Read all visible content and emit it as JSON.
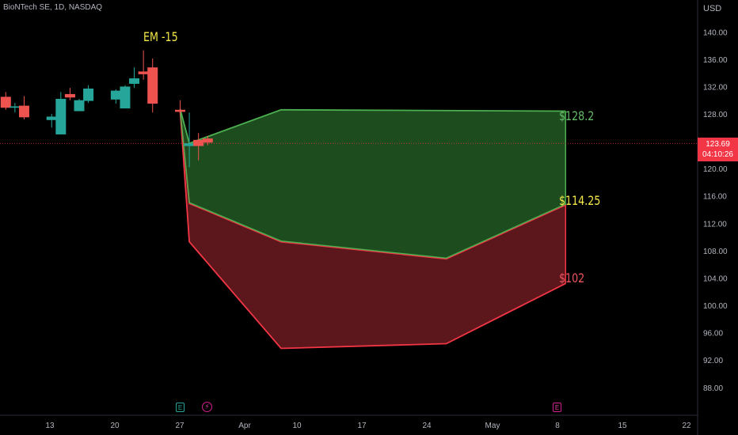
{
  "header": {
    "symbol": "BioNTech SE, 1D, NASDAQ",
    "currency": "USD"
  },
  "price_label": {
    "price": "123.69",
    "countdown": "04:10:26"
  },
  "annotations": {
    "em": "EM -15",
    "high": "$128.2",
    "mid": "$114.25",
    "low": "$102"
  },
  "events": {
    "earnings": "E",
    "dividend": "⚡"
  },
  "colors": {
    "up": "#26a69a",
    "down": "#ef5350",
    "green_fill": "#1d4d1e",
    "green_line": "#4caf50",
    "red_fill": "#5c171d",
    "red_line": "#f23645",
    "text": "#b2b5be"
  },
  "chart_data": {
    "type": "candlestick",
    "y_axis": {
      "ticks": [
        88,
        92,
        96,
        100,
        104,
        108,
        112,
        116,
        120,
        128,
        132,
        136,
        140
      ],
      "range": [
        85,
        142
      ]
    },
    "x_axis": {
      "ticks": [
        "13",
        "20",
        "27",
        "Apr",
        "10",
        "17",
        "24",
        "May",
        "8",
        "15",
        "22"
      ]
    },
    "current_price": 123.69,
    "candles": [
      {
        "date": "03-08",
        "o": 130.5,
        "h": 131.2,
        "l": 128.6,
        "c": 128.9
      },
      {
        "date": "03-09",
        "o": 128.9,
        "h": 129.6,
        "l": 128.2,
        "c": 129.1
      },
      {
        "date": "03-10",
        "o": 129.2,
        "h": 130.6,
        "l": 127.2,
        "c": 127.5
      },
      {
        "date": "03-13",
        "o": 127.1,
        "h": 128.0,
        "l": 126.0,
        "c": 127.6
      },
      {
        "date": "03-14",
        "o": 125.0,
        "h": 131.2,
        "l": 125.0,
        "c": 130.2
      },
      {
        "date": "03-15",
        "o": 130.9,
        "h": 131.8,
        "l": 130.0,
        "c": 130.4
      },
      {
        "date": "03-16",
        "o": 128.4,
        "h": 130.2,
        "l": 128.4,
        "c": 130.0
      },
      {
        "date": "03-17",
        "o": 129.9,
        "h": 132.2,
        "l": 129.6,
        "c": 131.7
      },
      {
        "date": "03-20",
        "o": 130.1,
        "h": 131.6,
        "l": 129.5,
        "c": 131.4
      },
      {
        "date": "03-21",
        "o": 128.8,
        "h": 132.2,
        "l": 128.8,
        "c": 132.0
      },
      {
        "date": "03-22",
        "o": 132.4,
        "h": 134.8,
        "l": 131.8,
        "c": 133.2
      },
      {
        "date": "03-23",
        "o": 134.2,
        "h": 137.3,
        "l": 133.0,
        "c": 133.8
      },
      {
        "date": "03-24",
        "o": 134.8,
        "h": 136.1,
        "l": 128.2,
        "c": 129.5
      },
      {
        "date": "03-27",
        "o": 128.6,
        "h": 130.0,
        "l": 127.8,
        "c": 128.3
      },
      {
        "date": "03-28",
        "o": 123.3,
        "h": 128.2,
        "l": 120.2,
        "c": 123.7
      },
      {
        "date": "03-29",
        "o": 124.2,
        "h": 125.2,
        "l": 121.2,
        "c": 123.3
      },
      {
        "date": "03-30",
        "o": 124.4,
        "h": 124.8,
        "l": 123.4,
        "c": 123.8
      }
    ],
    "upper_band": [
      {
        "date": "03-27",
        "y": 128.7
      },
      {
        "date": "03-28",
        "y": 123.7
      },
      {
        "date": "04-07",
        "y": 128.6
      },
      {
        "date": "05-08",
        "y": 128.4
      }
    ],
    "middle_band": [
      {
        "date": "03-27",
        "y": 128.5
      },
      {
        "date": "03-28",
        "y": 114.9
      },
      {
        "date": "04-07",
        "y": 109.3
      },
      {
        "date": "04-25",
        "y": 106.8
      },
      {
        "date": "05-08",
        "y": 114.7
      }
    ],
    "lower_band": [
      {
        "date": "03-27",
        "y": 128.5
      },
      {
        "date": "03-28",
        "y": 109.3
      },
      {
        "date": "04-07",
        "y": 93.7
      },
      {
        "date": "04-25",
        "y": 94.4
      },
      {
        "date": "05-08",
        "y": 103.2
      }
    ]
  }
}
